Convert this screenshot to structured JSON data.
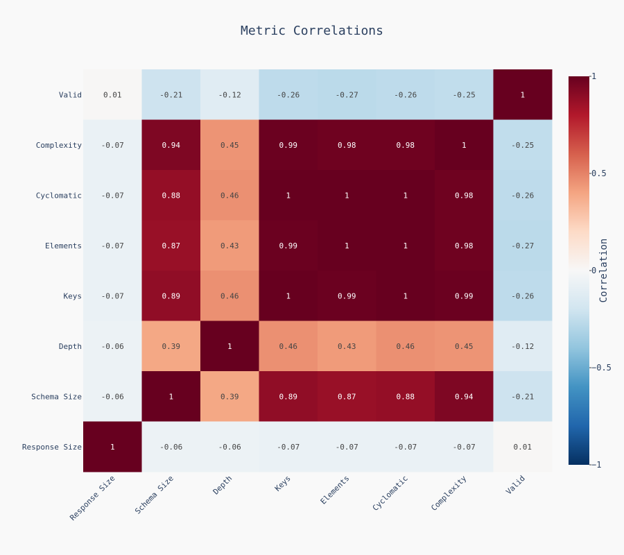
{
  "chart_data": {
    "type": "heatmap",
    "title": "Metric Correlations",
    "x": [
      "Response Size",
      "Schema Size",
      "Depth",
      "Keys",
      "Elements",
      "Cyclomatic",
      "Complexity",
      "Valid"
    ],
    "y": [
      "Valid",
      "Complexity",
      "Cyclomatic",
      "Elements",
      "Keys",
      "Depth",
      "Schema Size",
      "Response Size"
    ],
    "z": [
      [
        0.01,
        -0.21,
        -0.12,
        -0.26,
        -0.27,
        -0.26,
        -0.25,
        1
      ],
      [
        -0.07,
        0.94,
        0.45,
        0.99,
        0.98,
        0.98,
        1,
        -0.25
      ],
      [
        -0.07,
        0.88,
        0.46,
        1,
        1,
        1,
        0.98,
        -0.26
      ],
      [
        -0.07,
        0.87,
        0.43,
        0.99,
        1,
        1,
        0.98,
        -0.27
      ],
      [
        -0.07,
        0.89,
        0.46,
        1,
        0.99,
        1,
        0.99,
        -0.26
      ],
      [
        -0.06,
        0.39,
        1,
        0.46,
        0.43,
        0.46,
        0.45,
        -0.12
      ],
      [
        -0.06,
        1,
        0.39,
        0.89,
        0.87,
        0.88,
        0.94,
        -0.21
      ],
      [
        1,
        -0.06,
        -0.06,
        -0.07,
        -0.07,
        -0.07,
        -0.07,
        0.01
      ]
    ],
    "zrange": [
      -1,
      1
    ],
    "colorscale": "RdBu (reversed)",
    "colorbar": {
      "title": "Correlation",
      "ticks": [
        "1",
        "0.5",
        "0",
        "−0.5",
        "−1"
      ],
      "tick_values": [
        1,
        0.5,
        0,
        -0.5,
        -1
      ]
    },
    "show_cell_labels": true,
    "grid": false
  }
}
